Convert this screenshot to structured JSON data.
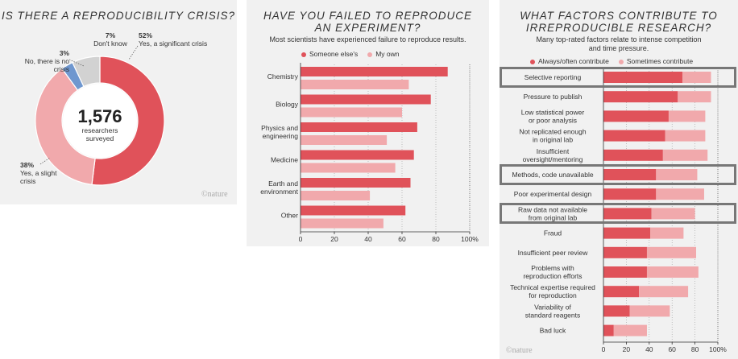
{
  "colors": {
    "dark": "#e0525a",
    "light": "#f1a9ac",
    "blue": "#6f97cf",
    "grey": "#d2d2d2",
    "highlight": "#777777"
  },
  "panel1": {
    "title": "IS THERE A REPRODUCIBILITY CRISIS?",
    "center_number": "1,576",
    "center_text_1": "researchers",
    "center_text_2": "surveyed",
    "logo": "©nature",
    "chart_data": {
      "type": "pie",
      "slices": [
        {
          "pct": "52%",
          "label": "Yes, a significant crisis",
          "value": 52,
          "color": "#e0525a"
        },
        {
          "pct": "38%",
          "label": "Yes, a slight crisis",
          "value": 38,
          "color": "#f1a9ac"
        },
        {
          "pct": "3%",
          "label": "No, there is no crisis",
          "value": 3,
          "color": "#6f97cf"
        },
        {
          "pct": "7%",
          "label": "Don't know",
          "value": 7,
          "color": "#d2d2d2"
        }
      ]
    }
  },
  "panel2": {
    "title_1": "HAVE YOU FAILED TO REPRODUCE",
    "title_2": "AN EXPERIMENT?",
    "subtitle": "Most scientists have experienced failure to reproduce results.",
    "legend": [
      "Someone else's",
      "My own"
    ],
    "chart_data": {
      "type": "bar",
      "categories": [
        "Chemistry",
        "Biology",
        "Physics and engineering",
        "Medicine",
        "Earth and environment",
        "Other"
      ],
      "category_lines": [
        [
          "Chemistry"
        ],
        [
          "Biology"
        ],
        [
          "Physics and",
          "engineering"
        ],
        [
          "Medicine"
        ],
        [
          "Earth and",
          "environment"
        ],
        [
          "Other"
        ]
      ],
      "series": [
        {
          "name": "Someone else's",
          "values": [
            87,
            77,
            69,
            67,
            65,
            62
          ]
        },
        {
          "name": "My own",
          "values": [
            64,
            60,
            51,
            56,
            41,
            49
          ]
        }
      ],
      "xticks": [
        "0",
        "20",
        "40",
        "60",
        "80",
        "100%"
      ],
      "xlim": [
        0,
        100
      ]
    }
  },
  "panel3": {
    "title_1": "WHAT FACTORS CONTRIBUTE TO",
    "title_2": "IRREPRODUCIBLE RESEARCH?",
    "subtitle_1": "Many top-rated factors relate to intense competition",
    "subtitle_2": "and time pressure.",
    "legend": [
      "Always/often contribute",
      "Sometimes contribute"
    ],
    "logo": "©nature",
    "chart_data": {
      "type": "bar",
      "categories": [
        "Selective reporting",
        "Pressure to publish",
        "Low statistical power or poor analysis",
        "Not replicated enough in original lab",
        "Insufficient oversight/mentoring",
        "Methods, code unavailable",
        "Poor experimental design",
        "Raw data not available from original lab",
        "Fraud",
        "Insufficient peer review",
        "Problems with reproduction efforts",
        "Technical expertise required for reproduction",
        "Variability of standard reagents",
        "Bad luck"
      ],
      "category_lines": [
        [
          "Selective reporting"
        ],
        [
          "Pressure to publish"
        ],
        [
          "Low statistical power",
          "or poor analysis"
        ],
        [
          "Not replicated enough",
          "in original lab"
        ],
        [
          "Insufficient",
          "oversight/mentoring"
        ],
        [
          "Methods, code unavailable"
        ],
        [
          "Poor experimental design"
        ],
        [
          "Raw data not available",
          "from original lab"
        ],
        [
          "Fraud"
        ],
        [
          "Insufficient peer review"
        ],
        [
          "Problems with",
          "reproduction efforts"
        ],
        [
          "Technical expertise required",
          "for reproduction"
        ],
        [
          "Variability of",
          "standard reagents"
        ],
        [
          "Bad luck"
        ]
      ],
      "series": [
        {
          "name": "Always/often contribute",
          "values": [
            69,
            65,
            57,
            54,
            52,
            46,
            46,
            42,
            41,
            38,
            38,
            31,
            23,
            9
          ]
        },
        {
          "name": "Sometimes contribute",
          "values": [
            25,
            29,
            32,
            35,
            39,
            36,
            42,
            38,
            29,
            43,
            45,
            43,
            35,
            29
          ]
        }
      ],
      "highlighted": [
        0,
        5,
        7
      ],
      "xticks": [
        "0",
        "20",
        "40",
        "60",
        "80",
        "100%"
      ],
      "xlim": [
        0,
        100
      ]
    }
  }
}
